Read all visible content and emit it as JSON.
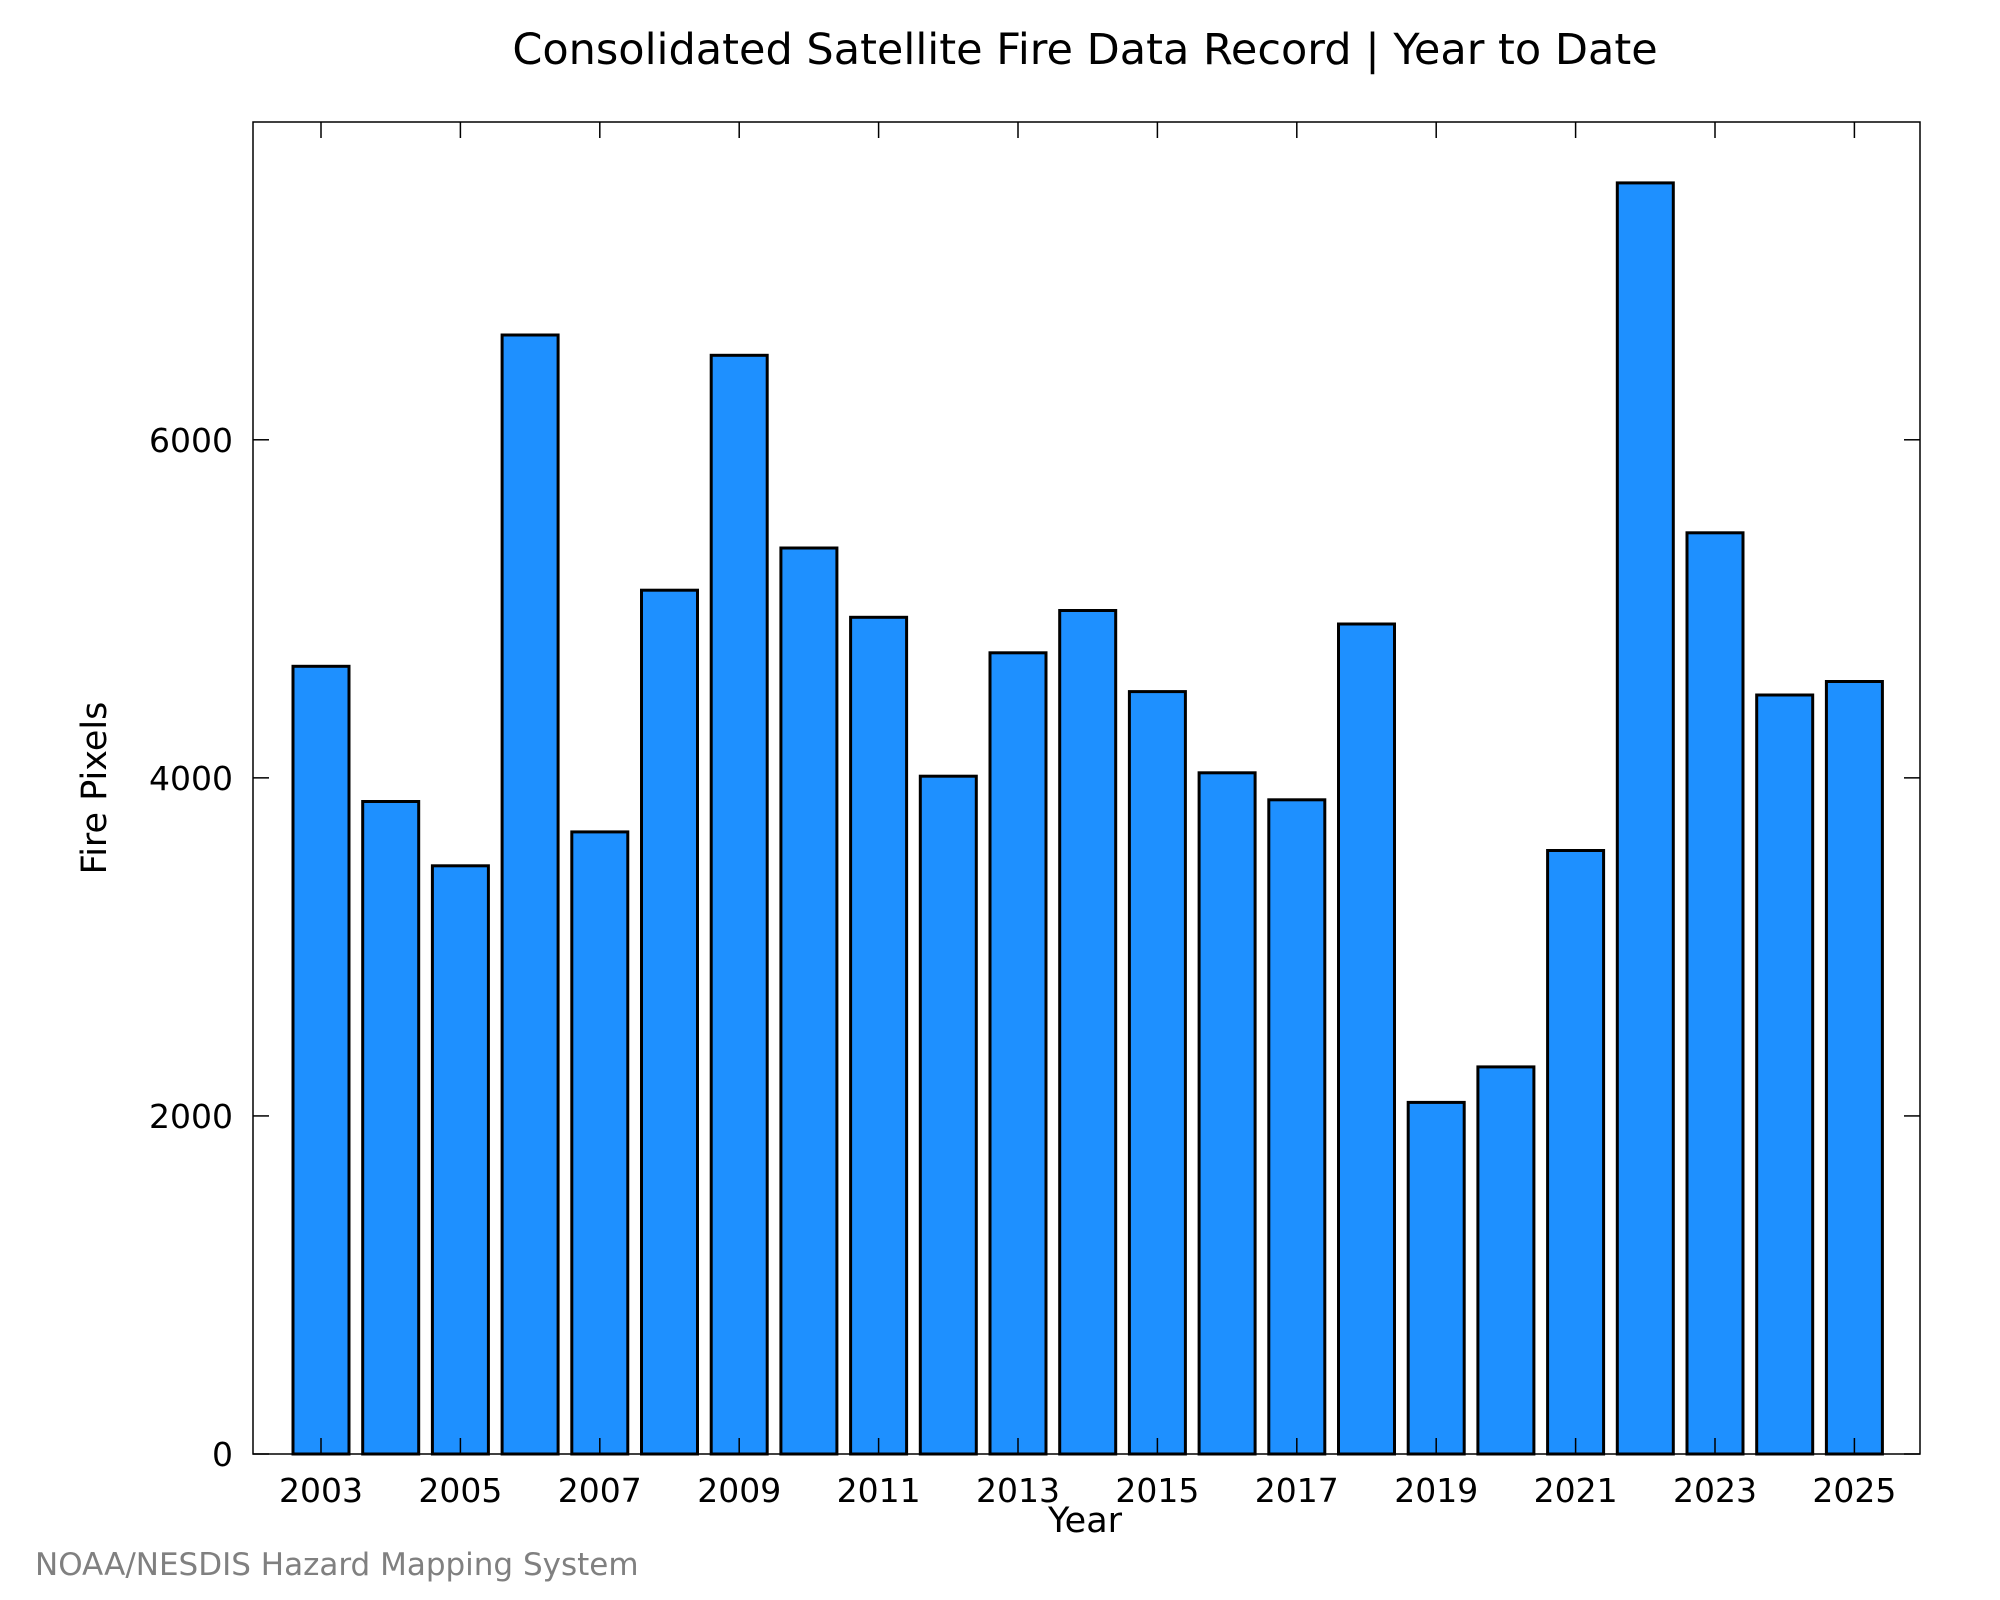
{
  "chart_data": {
    "type": "bar",
    "title": "Consolidated Satellite Fire Data Record | Year to Date",
    "xlabel": "Year",
    "ylabel": "Fire Pixels",
    "categories": [
      "2003",
      "2004",
      "2005",
      "2006",
      "2007",
      "2008",
      "2009",
      "2010",
      "2011",
      "2012",
      "2013",
      "2014",
      "2015",
      "2016",
      "2017",
      "2018",
      "2019",
      "2020",
      "2021",
      "2022",
      "2023",
      "2024",
      "2025"
    ],
    "values": [
      4660,
      3860,
      3480,
      6620,
      3680,
      5110,
      6500,
      5360,
      4950,
      4010,
      4740,
      4990,
      4510,
      4030,
      3870,
      4910,
      2080,
      2290,
      3570,
      7520,
      5450,
      4490,
      4570
    ],
    "xtick_labels": [
      "2003",
      "2005",
      "2007",
      "2009",
      "2011",
      "2013",
      "2015",
      "2017",
      "2019",
      "2021",
      "2023",
      "2025"
    ],
    "ytick_labels": [
      "0",
      "2000",
      "4000",
      "6000"
    ],
    "yticks": [
      0,
      2000,
      4000,
      6000
    ],
    "ylim": [
      0,
      7880
    ],
    "bar_color": "#1e90ff",
    "grid": false,
    "legend": "none"
  },
  "footer": {
    "credit": "NOAA/NESDIS Hazard Mapping System"
  }
}
